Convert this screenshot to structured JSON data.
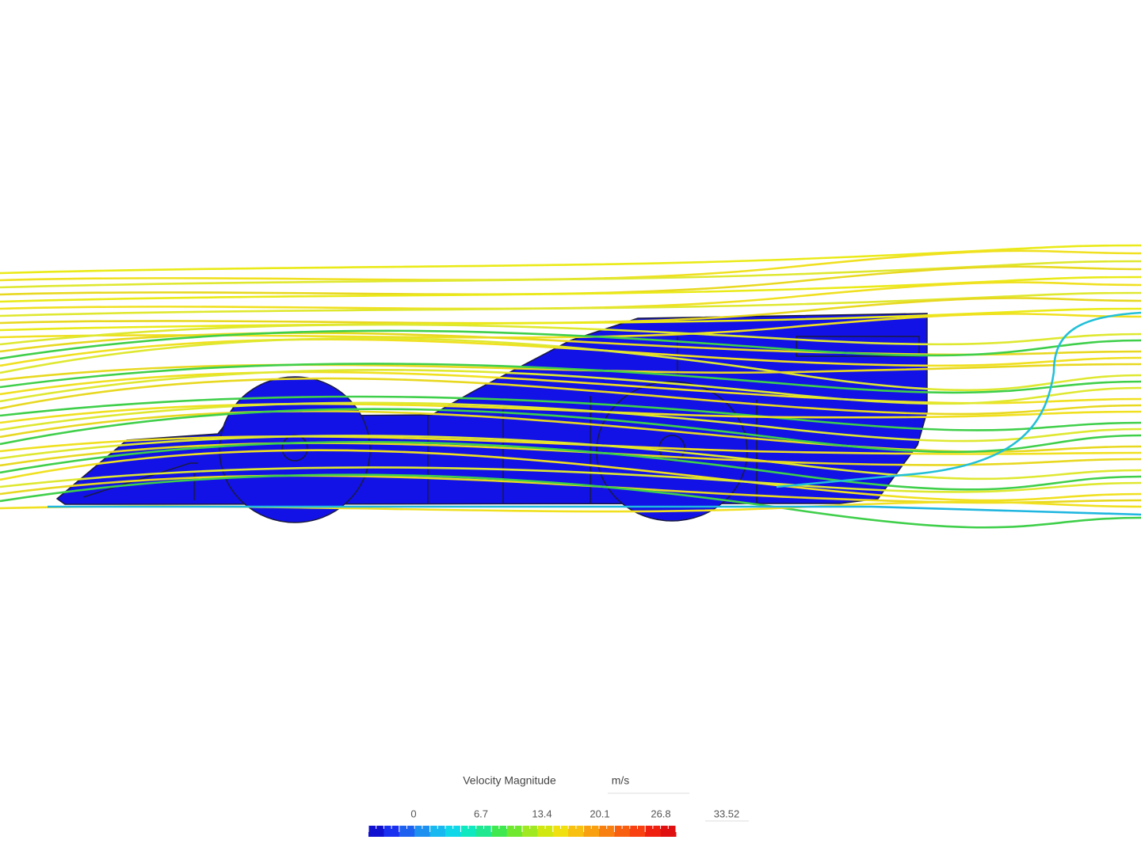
{
  "legend": {
    "title": "Velocity Magnitude",
    "unit": "m/s",
    "ticks": [
      "0",
      "6.7",
      "13.4",
      "20.1",
      "26.8",
      "33.52"
    ]
  }
}
